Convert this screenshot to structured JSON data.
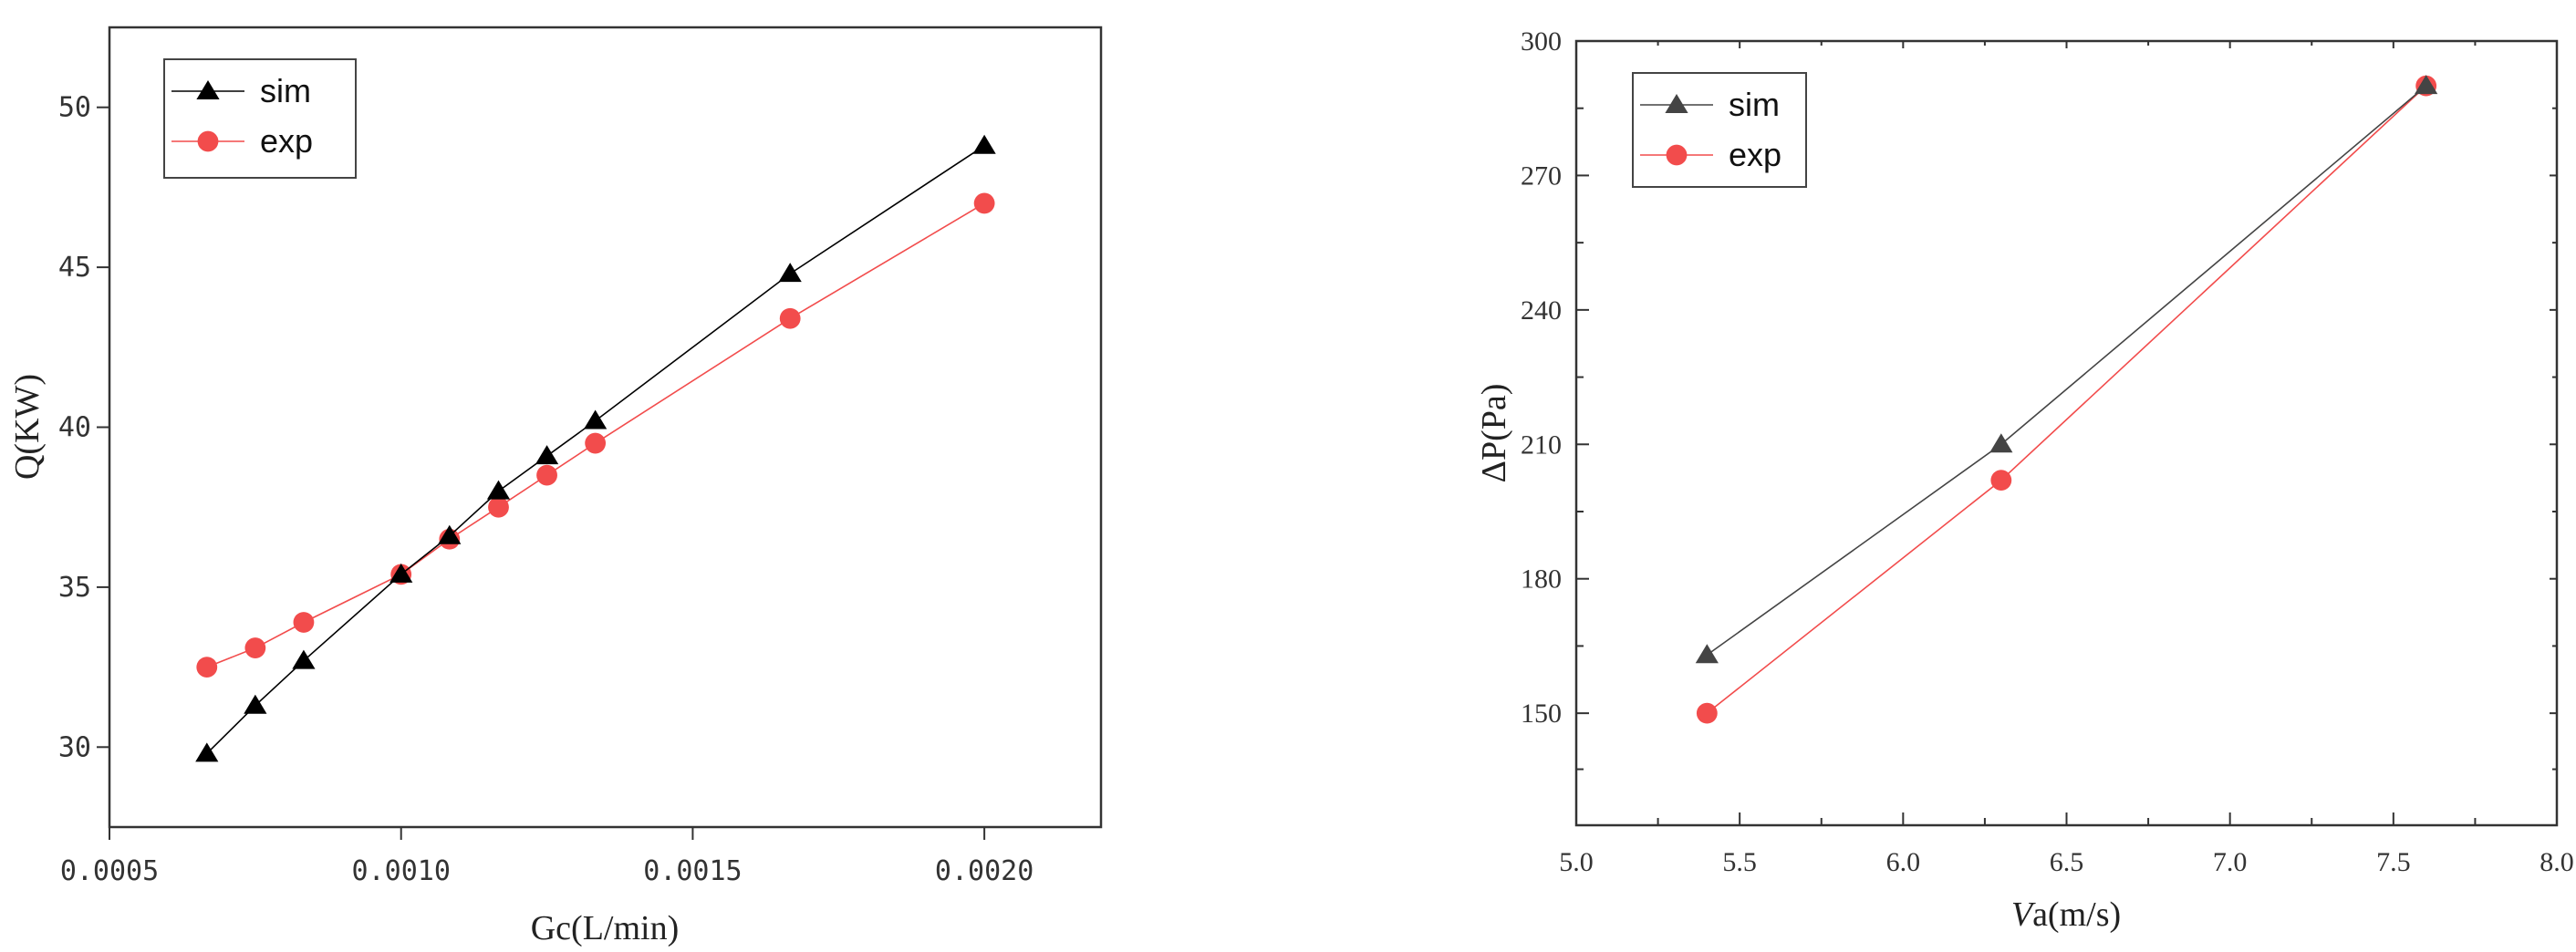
{
  "chart_data": [
    {
      "type": "line",
      "xlabel": "Gc(L/min)",
      "ylabel": "Q(KW)",
      "xlim": [
        0.0005,
        0.0022
      ],
      "ylim": [
        27.5,
        52.5
      ],
      "xticks": [
        "0.0005",
        "0.0010",
        "0.0015",
        "0.0020"
      ],
      "xtick_values": [
        0.0005,
        0.001,
        0.0015,
        0.002
      ],
      "yticks": [
        "30",
        "35",
        "40",
        "45",
        "50"
      ],
      "ytick_values": [
        30,
        35,
        40,
        45,
        50
      ],
      "tick_font": "mono",
      "grid": false,
      "legend_position": "top-left",
      "series": [
        {
          "name": "sim",
          "color": "#000000",
          "marker": "triangle",
          "x": [
            0.000667,
            0.00075,
            0.000833,
            0.001,
            0.001083,
            0.001167,
            0.00125,
            0.001333,
            0.001667,
            0.002
          ],
          "y": [
            29.8,
            31.3,
            32.7,
            35.4,
            36.6,
            38.0,
            39.1,
            40.2,
            44.8,
            48.8
          ]
        },
        {
          "name": "exp",
          "color": "#f24c4c",
          "marker": "circle",
          "x": [
            0.000667,
            0.00075,
            0.000833,
            0.001,
            0.001083,
            0.001167,
            0.00125,
            0.001333,
            0.001667,
            0.002
          ],
          "y": [
            32.5,
            33.1,
            33.9,
            35.4,
            36.5,
            37.5,
            38.5,
            39.5,
            43.4,
            47.0
          ]
        }
      ]
    },
    {
      "type": "line",
      "xlabel": "Va(m/s)",
      "xlabel_italic_prefix": "V",
      "xlabel_rest": "a(m/s)",
      "ylabel": "ΔP(Pa)",
      "xlim": [
        5.0,
        8.0
      ],
      "ylim": [
        125,
        300
      ],
      "xticks": [
        "5.0",
        "5.5",
        "6.0",
        "6.5",
        "7.0",
        "7.5",
        "8.0"
      ],
      "xtick_values": [
        5.0,
        5.5,
        6.0,
        6.5,
        7.0,
        7.5,
        8.0
      ],
      "yticks": [
        "150",
        "180",
        "210",
        "240",
        "270",
        "300"
      ],
      "ytick_values": [
        150,
        180,
        210,
        240,
        270,
        300
      ],
      "tick_font": "serif",
      "grid": false,
      "legend_position": "top-left",
      "series": [
        {
          "name": "sim",
          "color": "#444444",
          "marker": "triangle",
          "x": [
            5.4,
            6.3,
            7.6
          ],
          "y": [
            163,
            210,
            290
          ]
        },
        {
          "name": "exp",
          "color": "#f24c4c",
          "marker": "circle",
          "x": [
            5.4,
            6.3,
            7.6
          ],
          "y": [
            150,
            202,
            290
          ]
        }
      ]
    }
  ]
}
